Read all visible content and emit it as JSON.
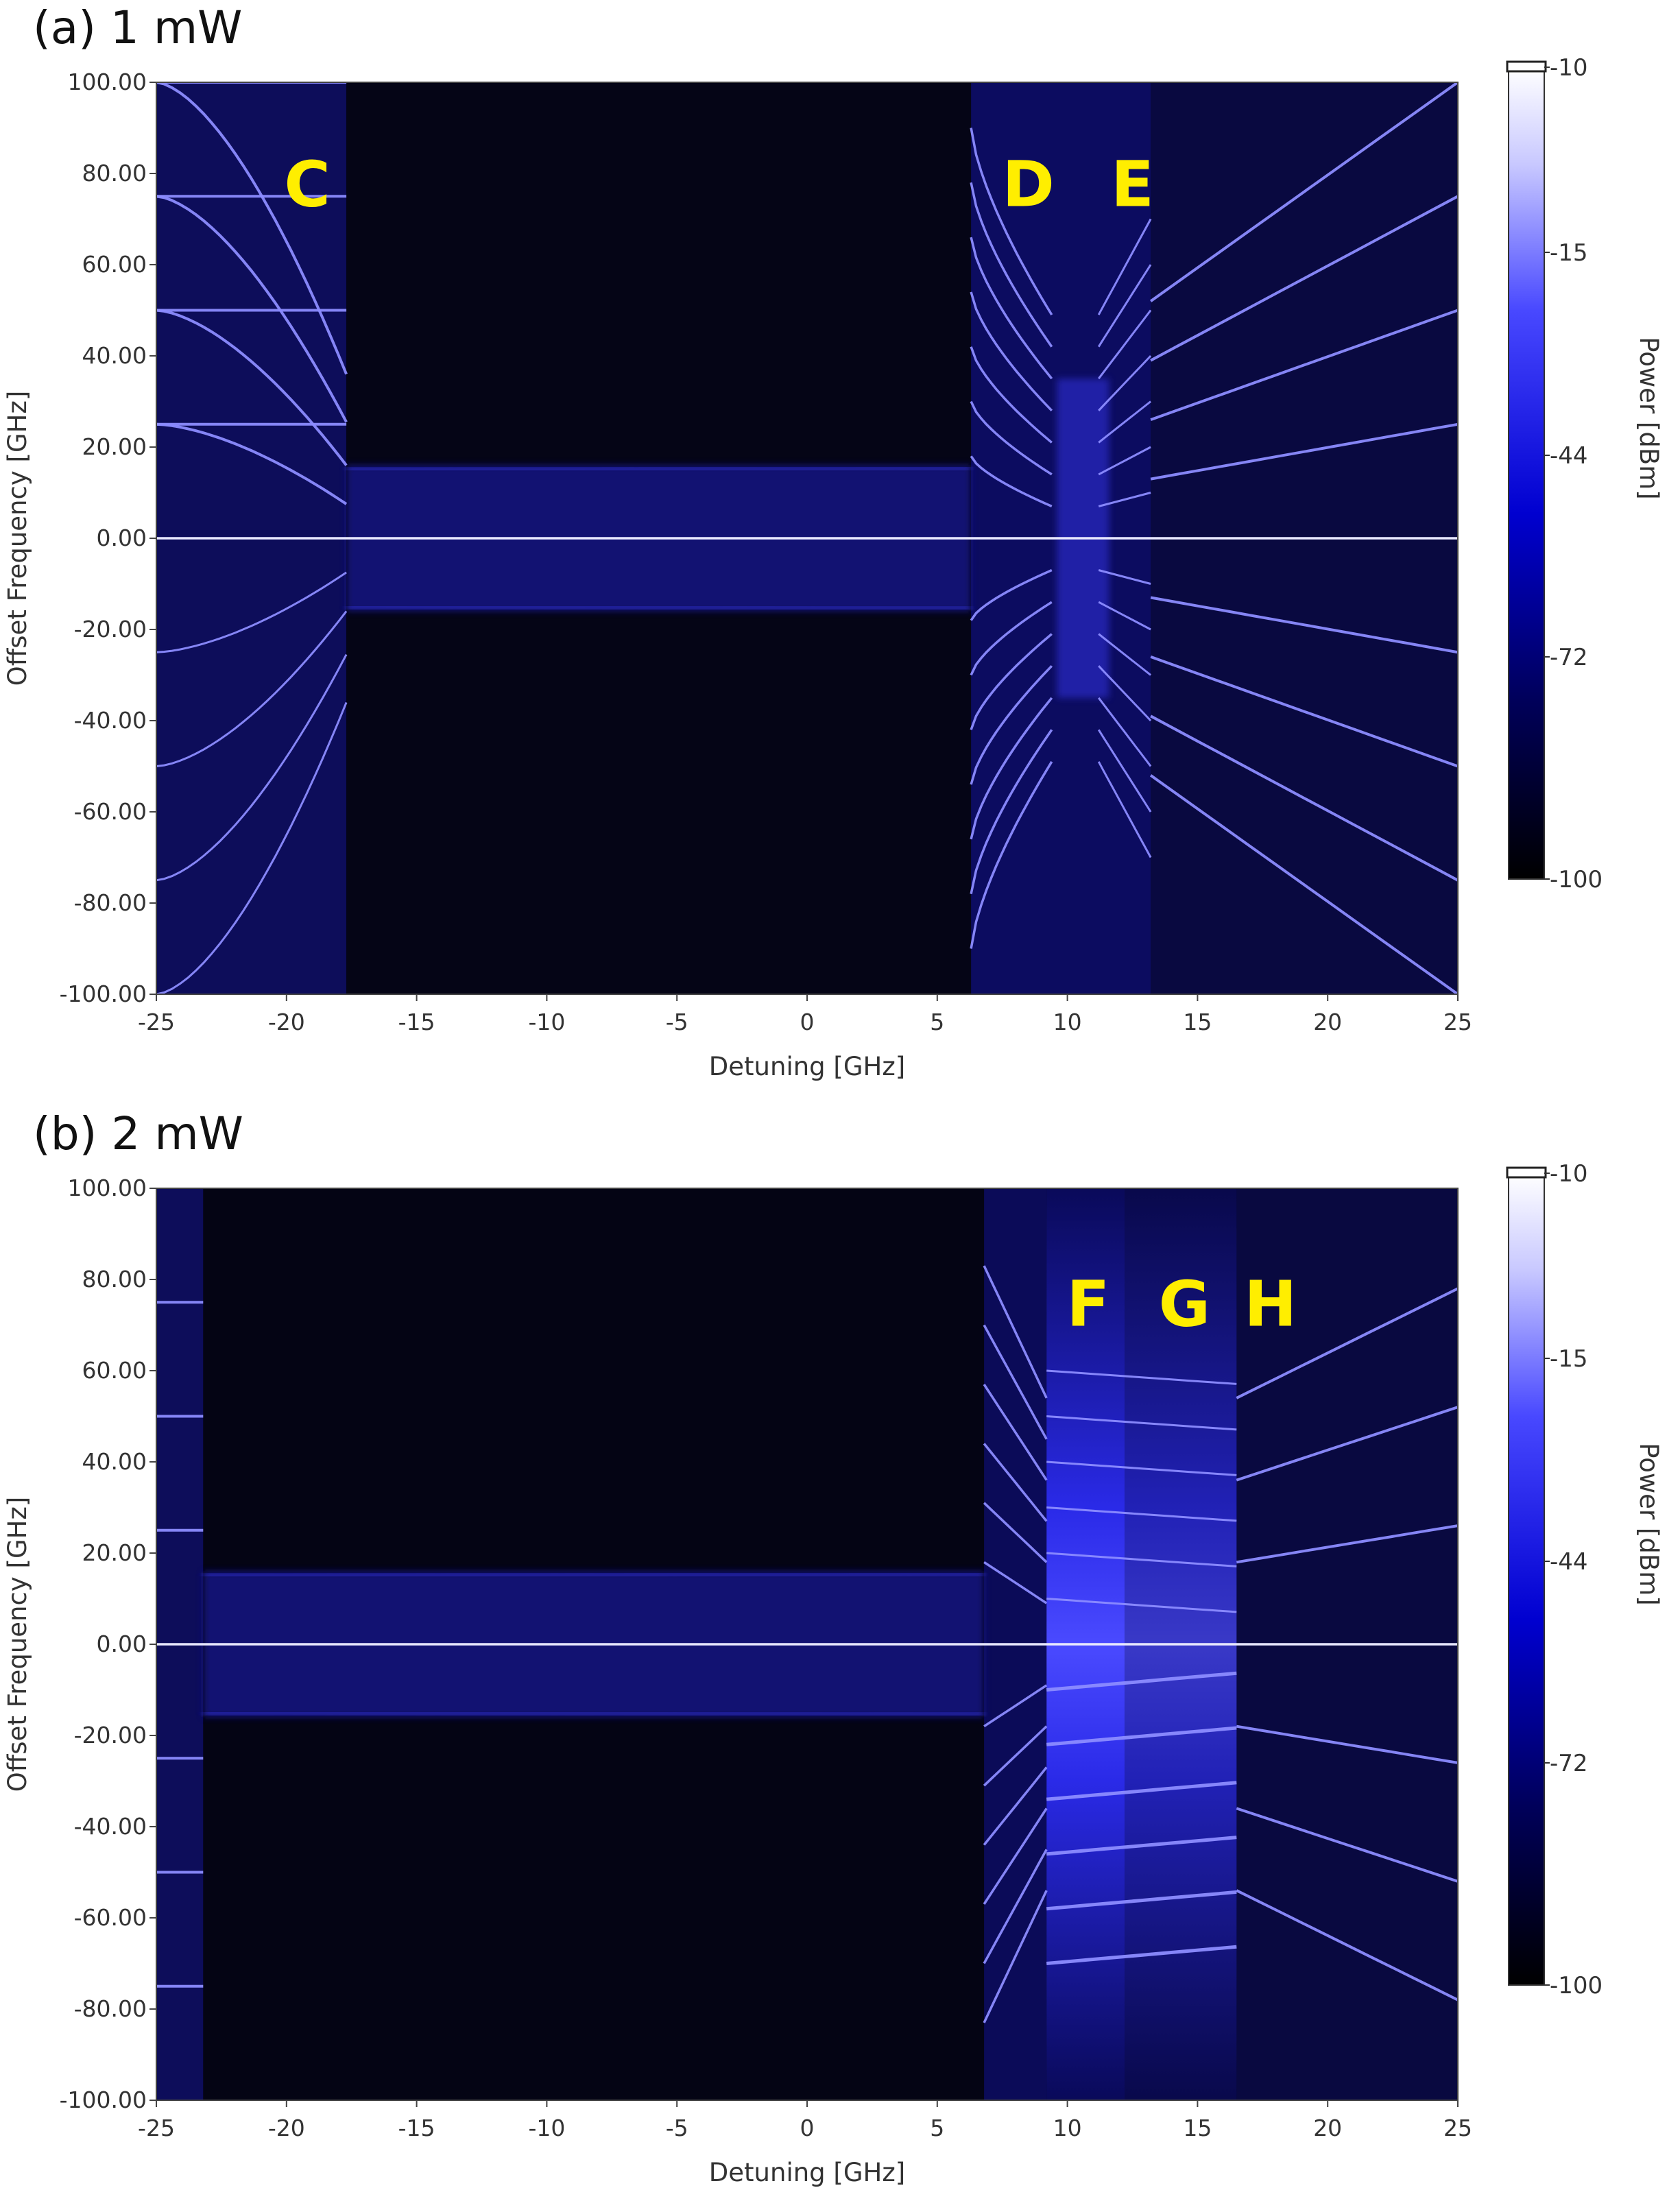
{
  "chart_data": [
    {
      "type": "heatmap",
      "title": "(a) 1 mW",
      "xlabel": "Detuning [GHz]",
      "ylabel": "Offset Frequency [GHz]",
      "xlim": [
        -25,
        25
      ],
      "ylim": [
        -100,
        100
      ],
      "x_ticks": [
        "-25",
        "-20",
        "-15",
        "-10",
        "-5",
        "0",
        "5",
        "10",
        "15",
        "20",
        "25"
      ],
      "y_ticks": [
        "100.00",
        "80.00",
        "60.00",
        "40.00",
        "20.00",
        "0.00",
        "-20.00",
        "-40.00",
        "-60.00",
        "-80.00",
        "-100.00"
      ],
      "colorbar": {
        "label": "Power [dBm]",
        "ticks": [
          "-10",
          "-15",
          "-44",
          "-72",
          "-100"
        ],
        "colors": [
          "#ffffff",
          "#3333ff",
          "#0000a0",
          "#000000"
        ]
      },
      "annotations": [
        {
          "text": "C",
          "x": -19.2,
          "y": 78
        },
        {
          "text": "D",
          "x": 8.5,
          "y": 78
        },
        {
          "text": "E",
          "x": 12.5,
          "y": 78
        }
      ]
    },
    {
      "type": "heatmap",
      "title": "(b) 2 mW",
      "xlabel": "Detuning [GHz]",
      "ylabel": "Offset Frequency [GHz]",
      "xlim": [
        -25,
        25
      ],
      "ylim": [
        -100,
        100
      ],
      "x_ticks": [
        "-25",
        "-20",
        "-15",
        "-10",
        "-5",
        "0",
        "5",
        "10",
        "15",
        "20",
        "25"
      ],
      "y_ticks": [
        "100.00",
        "80.00",
        "60.00",
        "40.00",
        "20.00",
        "0.00",
        "-20.00",
        "-40.00",
        "-60.00",
        "-80.00",
        "-100.00"
      ],
      "colorbar": {
        "label": "Power [dBm]",
        "ticks": [
          "-10",
          "-15",
          "-44",
          "-72",
          "-100"
        ],
        "colors": [
          "#ffffff",
          "#3333ff",
          "#0000a0",
          "#000000"
        ]
      },
      "annotations": [
        {
          "text": "F",
          "x": 10.8,
          "y": 75
        },
        {
          "text": "G",
          "x": 14.5,
          "y": 75
        },
        {
          "text": "H",
          "x": 17.8,
          "y": 75
        }
      ]
    }
  ]
}
